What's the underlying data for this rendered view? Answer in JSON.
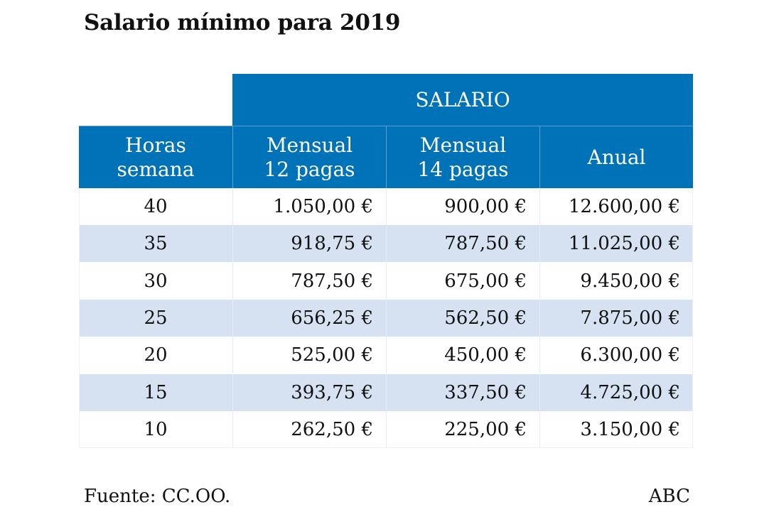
{
  "title": "Salario mínimo para 2019",
  "colors": {
    "header_bg": "#0072b8",
    "alt_row_bg": "#d6e2f1",
    "header_text": "#ffffff"
  },
  "chart_data": {
    "type": "table",
    "title": "Salario mínimo para 2019",
    "group_header": "SALARIO",
    "columns": [
      "Horas semana",
      "Mensual 12 pagas",
      "Mensual 14 pagas",
      "Anual"
    ],
    "column_lines": [
      [
        "Horas",
        "semana"
      ],
      [
        "Mensual",
        "12 pagas"
      ],
      [
        "Mensual",
        "14 pagas"
      ],
      [
        "Anual"
      ]
    ],
    "rows": [
      [
        "40",
        "1.050,00 €",
        "900,00 €",
        "12.600,00 €"
      ],
      [
        "35",
        "918,75 €",
        "787,50 €",
        "11.025,00 €"
      ],
      [
        "30",
        "787,50 €",
        "675,00 €",
        "9.450,00 €"
      ],
      [
        "25",
        "656,25 €",
        "562,50 €",
        "7.875,00 €"
      ],
      [
        "20",
        "525,00 €",
        "450,00 €",
        "6.300,00 €"
      ],
      [
        "15",
        "393,75 €",
        "337,50 €",
        "4.725,00 €"
      ],
      [
        "10",
        "262,50 €",
        "225,00 €",
        "3.150,00 €"
      ]
    ]
  },
  "footer": {
    "source": "Fuente: CC.OO.",
    "brand": "ABC"
  }
}
